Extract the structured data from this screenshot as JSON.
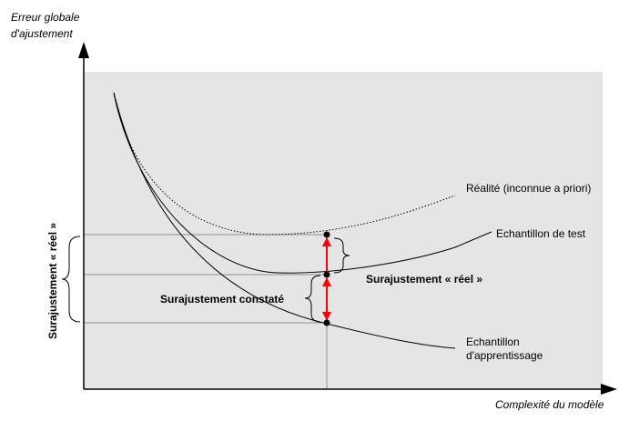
{
  "axes": {
    "y_label_line1": "Erreur globale",
    "y_label_line2": "d'ajustement",
    "x_label": "Complexité du modèle"
  },
  "curves": {
    "reality_label": "Réalité (inconnue a priori)",
    "test_label": "Echantillon de test",
    "train_label_line1": "Echantillon",
    "train_label_line2": "d'apprentissage"
  },
  "annotations": {
    "real_overfit_right": "Surajustement « réel »",
    "observed_overfit": "Surajustement constaté",
    "real_overfit_left": "Surajustement « réel »"
  },
  "colors": {
    "plot_background": "#e5e5e5",
    "arrow_red": "#ff0000",
    "guide_line": "#909090",
    "ink": "#000000"
  }
}
